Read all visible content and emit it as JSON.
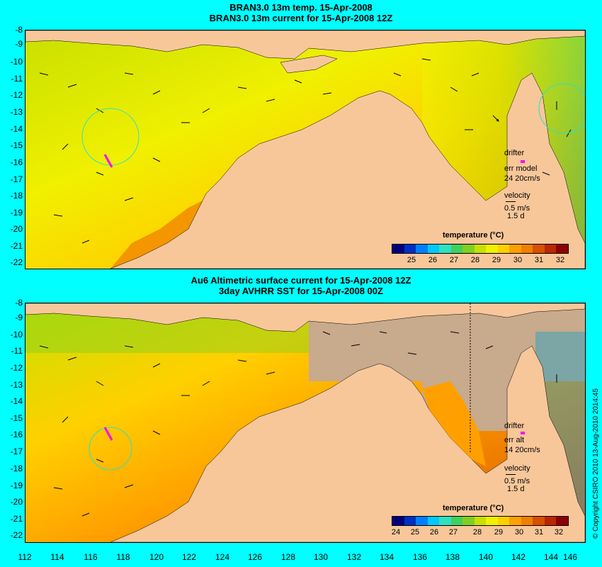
{
  "top_panel": {
    "title_line1": "BRAN3.0 13m temp. 15-Apr-2008",
    "title_line2": "BRAN3.0 13m current for 15-Apr-2008 12Z",
    "legend": {
      "drifter": "drifter",
      "err_label": "err model",
      "err_value": "24 20cm/s",
      "velocity": "velocity",
      "scale": "0.5 m/s",
      "days": "1.5 d"
    },
    "colorbar": {
      "title": "temperature (°C)",
      "labels": [
        "25",
        "26",
        "27",
        "28",
        "29",
        "30",
        "31",
        "32"
      ]
    }
  },
  "bottom_panel": {
    "title_line1": "Au6 Altimetric surface current for 15-Apr-2008 12Z",
    "title_line2": "3day AVHRR SST for 15-Apr-2008 00Z",
    "legend": {
      "drifter": "drifter",
      "err_label": "err alt",
      "err_value": "14 20cm/s",
      "velocity": "velocity",
      "scale": "0.5 m/s",
      "days": "1.5 d"
    },
    "colorbar": {
      "title": "temperature (°C)",
      "labels": [
        "24",
        "25",
        "26",
        "27",
        "28",
        "29",
        "30",
        "31",
        "32"
      ]
    }
  },
  "y_ticks": [
    "-8",
    "-9",
    "-10",
    "-11",
    "-12",
    "-13",
    "-14",
    "-15",
    "-16",
    "-17",
    "-18",
    "-19",
    "-20",
    "-21",
    "-22"
  ],
  "x_ticks": [
    "112",
    "114",
    "116",
    "118",
    "120",
    "122",
    "124",
    "126",
    "128",
    "130",
    "132",
    "134",
    "136",
    "138",
    "140",
    "142",
    "144",
    "146"
  ],
  "copyright": "© Copyright CSIRO 2010   13-Aug-2010 2014:45",
  "colors": {
    "background": "#00ffff",
    "land": "#f7c79a",
    "no_data": "#c8aa8c",
    "drifter": "#ff00ff",
    "colormap": [
      "#00007f",
      "#0030c0",
      "#0080ff",
      "#00c8ff",
      "#30e0c0",
      "#40d060",
      "#80d020",
      "#c8e000",
      "#f0f000",
      "#ffd000",
      "#ffa000",
      "#f08000",
      "#d85000",
      "#b82800",
      "#8b0000"
    ]
  }
}
